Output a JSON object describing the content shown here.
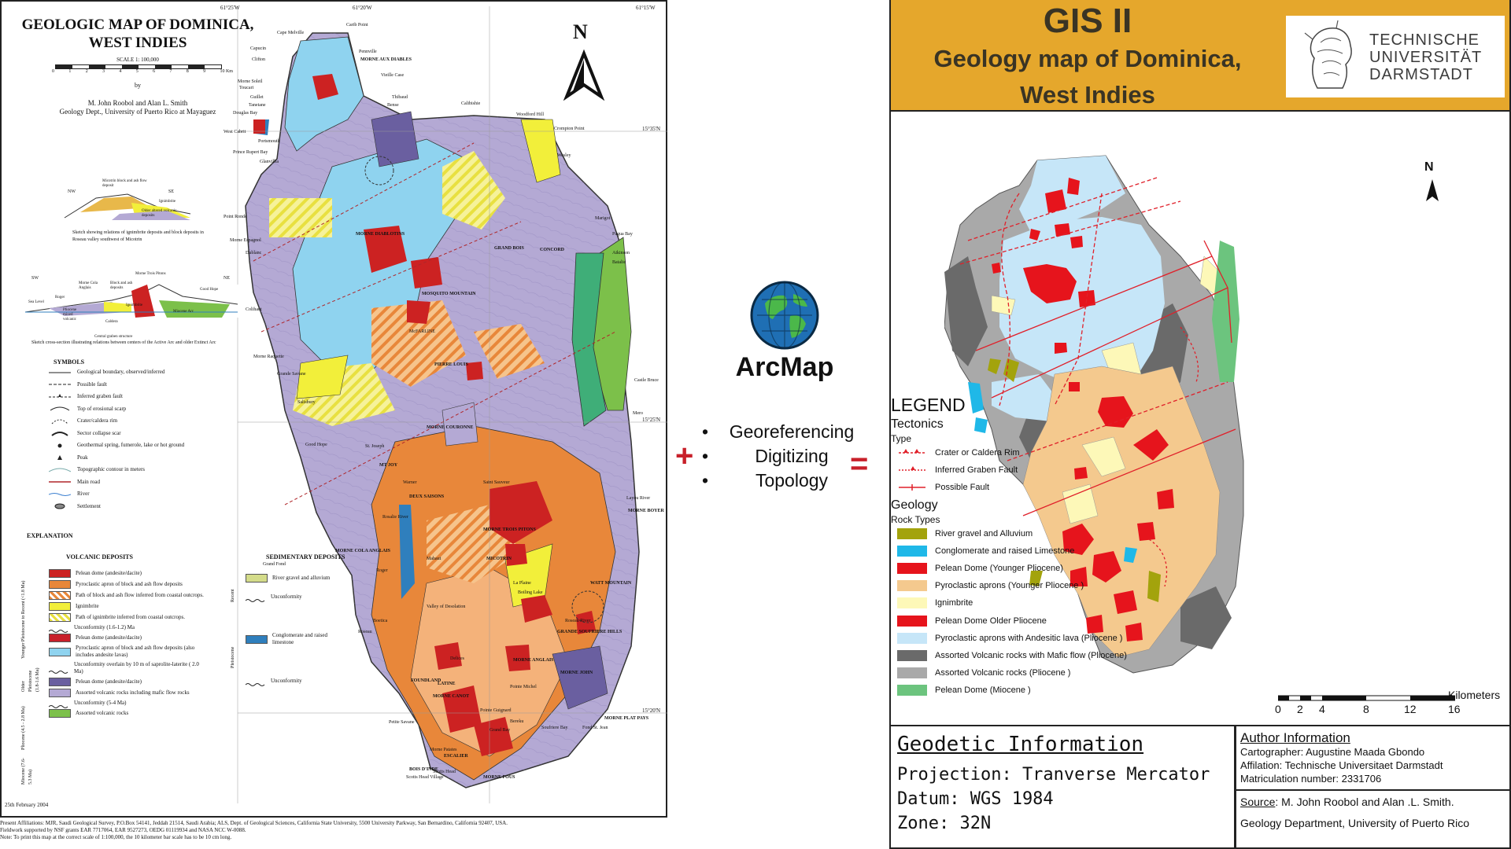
{
  "left_map": {
    "title": "GEOLOGIC MAP OF DOMINICA, WEST INDIES",
    "scale": "SCALE 1: 100,000",
    "scale_ticks": [
      "0",
      "1",
      "2",
      "3",
      "4",
      "5",
      "6",
      "7",
      "8",
      "9",
      "10 Km"
    ],
    "by": "by",
    "authors": "M. John Roobol and Alan L. Smith",
    "affiliation": "Geology Dept., University of Puerto Rico at Mayaguez",
    "north": "N",
    "coords": [
      "61°20'W",
      "61°25'W",
      "61°15'W",
      "15°35'N",
      "15°25'N",
      "15°20'N"
    ],
    "section1_caption": "Sketch showing relations of ignimbrite deposits and block deposits in Roseau valley southwest of Micotrin",
    "section2_caption": "Sketch cross-section illustrating relations between centers of the Active Arc and older Extinct Arc",
    "section1_labels": [
      "NW",
      "SE",
      "Micotrin block and ash flow deposit",
      "Ignimbrite",
      "Older altered volcanic deposits"
    ],
    "section2_labels": [
      "SW",
      "NE",
      "Morne Trois Pitons",
      "Morne Cola Anglais",
      "Block and ash deposits",
      "Good Hope",
      "Sea Level",
      "Roger",
      "Pliocene mixed volcanic",
      "Caldera",
      "Ignimbrite",
      "Miocene Arc",
      "Central graben structure"
    ],
    "symbols_heading": "SYMBOLS",
    "symbols": [
      "Geological boundary, observed/inferred",
      "Possible fault",
      "Inferred graben fault",
      "Top of erosional scarp",
      "Crater/caldera rim",
      "Sector collapse scar",
      "Geothermal spring, fumerole, lake or hot ground",
      "Peak",
      "Topographic contour in meters",
      "Main road",
      "River",
      "Settlement"
    ],
    "explanation_heading": "EXPLANATION",
    "volcanic_heading": "VOLCANIC DEPOSITS",
    "sedimentary_heading": "SEDIMENTARY DEPOSITS",
    "age_labels": [
      "Younger Pleistocene to Recent (<1.8 Ma)",
      "Older Pleistocene (1.8-1.6 Ma)",
      "Pliocene (4.5 - 2.8 Ma)",
      "Miocene (7.6-5.3 Ma)",
      "Recent",
      "Pleistocene"
    ],
    "volcanic_legend": [
      {
        "label": "Pelean dome (andesite/dacite)",
        "color": "#cc2222"
      },
      {
        "label": "Pyroclastic apron of block and ash flow deposits",
        "color": "#e8873a"
      },
      {
        "label": "Path of block and ash flow inferred from coastal outcrops.",
        "color": "#f4b27a"
      },
      {
        "label": "Ignimbrite",
        "color": "#f2ef3a"
      },
      {
        "label": "Path of ignimbrite inferred from coastal outcrops.",
        "color": "#f6f29a"
      },
      {
        "label": "Unconformity (1.6-1.2) Ma",
        "color": ""
      },
      {
        "label": "Pelean dome (andesite/dacite)",
        "color": "#c81f2a"
      },
      {
        "label": "Pyroclastic apron of block and ash flow deposits (also includes andesite lavas)",
        "color": "#8fd3ef"
      },
      {
        "label": "Unconformity overlain by 10 m of saprolite-laterite ( 2.0 Ma)",
        "color": ""
      },
      {
        "label": "Pelean dome (andesite/dacite)",
        "color": "#6a5fa0"
      },
      {
        "label": "Assorted volcanic rocks including mafic flow rocks",
        "color": "#b4a9d4"
      },
      {
        "label": "Unconformity (5-4 Ma)",
        "color": ""
      },
      {
        "label": "Assorted volcanic rocks",
        "color": "#7cc04a"
      }
    ],
    "sedimentary_legend": [
      {
        "label": "River gravel and alluvium",
        "color": "#d4dc8a"
      },
      {
        "label": "Unconformity",
        "color": ""
      },
      {
        "label": "Conglomerate and raised limestone",
        "color": "#2f7fbd"
      },
      {
        "label": "Unconformity",
        "color": ""
      }
    ],
    "places": [
      "Carib Point",
      "Cape Melville",
      "Capucin",
      "Clifton",
      "Pennville",
      "MORNE AUX DIABLES",
      "Vieille Case",
      "Morne Soleil",
      "Toucari",
      "Guillet",
      "Tanetane",
      "Douglas Bay",
      "Thibaud",
      "Bense",
      "Calibishie",
      "Woodford Hill",
      "West Cabrit",
      "Portsmouth",
      "Crompton Point",
      "Wesley",
      "Prince Rupert Bay",
      "Glanvillia",
      "MORNE DIABLOTINS",
      "Marigot",
      "Point Ronde",
      "Pagua Bay",
      "Morne Espagnol",
      "Dublanc",
      "GRAND BOIS",
      "CONCORD",
      "Atkinson",
      "Batalie",
      "MOSQUITO MOUNTAIN",
      "Colihaut",
      "McFARLINE",
      "Morne Raquette",
      "Grande Savane",
      "PIERRE LOUIS",
      "Castle Bruce",
      "Salisbury",
      "MORNE COURONNE",
      "Mero",
      "Good Hope",
      "St. Joseph",
      "MT JOY",
      "Layou River",
      "Warner",
      "Saint Sauveur",
      "DEUX SAISONS",
      "MORNE BOYER",
      "MORNE TROIS PITONS",
      "Rosalie River",
      "MORNE COLA ANGLAIS",
      "Mahaut",
      "Grand Fond",
      "MICOTRIN",
      "Roger",
      "La Plaine",
      "Boiling Lake",
      "Valley of Desolation",
      "WATT MOUNTAIN",
      "Boetica",
      "Roseau",
      "Roseau River",
      "GRANDE SOUFRIERE HILLS",
      "Delices",
      "MORNE ANGLAIS",
      "MORNE JOHN",
      "FOUNDLAND",
      "Pointe Michel",
      "LATINE",
      "MORNE CANOT",
      "MORNE PLAT PAYS",
      "Petite Savane",
      "Pointe Guignard",
      "Bereku",
      "Grand Bay",
      "Morne Patates",
      "Soufriere Bay",
      "BOIS D'INDE",
      "Scotts Head",
      "Scotts Head Village",
      "MORNE FOUS",
      "ESCALIER",
      "Fond St. Jean"
    ],
    "date": "25th February 2004",
    "footer_line1": "Present Affiliations: MJR, Saudi Geological Survey, P.O.Box 54141, Jeddah 21514, Saudi Arabia; ALS, Dept. of Geological Sciences, California State University, 5500 University Parkway, San Bernardino, California 92407, USA.",
    "footer_line2": "Fieldwork supported by NSF grants EAR 7717064, EAR 9527273, OEDG 01119934 and NASA NCC W-0088.",
    "footer_line3": "Note: To print this map at the correct scale of 1:100,000, the 10 kilometer bar scale has to be 10 cm long."
  },
  "middle": {
    "logo_label": "ArcMap",
    "steps": [
      "Georeferencing",
      "Digitizing",
      "Topology"
    ],
    "plus": "+",
    "equals": "="
  },
  "right": {
    "title": "GIS II",
    "subtitle_line1": "Geology map of Dominica,",
    "subtitle_line2": "West Indies",
    "logo_text": [
      "TECHNISCHE",
      "UNIVERSITÄT",
      "DARMSTADT"
    ],
    "north": "N",
    "legend": {
      "title": "LEGEND",
      "tectonics_heading": "Tectonics",
      "type_label": "Type",
      "tectonics": [
        {
          "label": "Crater or Caldera Rim",
          "color": "#e0202a",
          "style": "crater"
        },
        {
          "label": "Inferred Graben Fault",
          "color": "#e0202a",
          "style": "graben"
        },
        {
          "label": "Possible Fault",
          "color": "#e0202a",
          "style": "fault"
        }
      ],
      "geology_heading": "Geology",
      "rock_types_label": "Rock Types",
      "rock_types": [
        {
          "label": "River gravel and Alluvium",
          "color": "#a3a30c"
        },
        {
          "label": "Conglomerate and raised Limestone",
          "color": "#1fb8e8"
        },
        {
          "label": "Pelean Dome (Younger Pliocene)",
          "color": "#e6141c"
        },
        {
          "label": "Pyroclastic aprons (Younger Pliocene )",
          "color": "#f4c98e"
        },
        {
          "label": "Ignimbrite",
          "color": "#fdf8b8"
        },
        {
          "label": "Pelean Dome Older Pliocene",
          "color": "#e6141c"
        },
        {
          "label": "Pyroclastic aprons with Andesitic lava (Pliocene )",
          "color": "#c6e6f8"
        },
        {
          "label": "Assorted Volcanic rocks with Mafic flow (Pliocene)",
          "color": "#6a6a6a"
        },
        {
          "label": "Assorted Volcanic rocks (Pliocene )",
          "color": "#a9a9a9"
        },
        {
          "label": "Pelean Dome (Miocene )",
          "color": "#6cc47e"
        }
      ]
    },
    "scale": {
      "ticks": [
        "0",
        "2",
        "4",
        "8",
        "12",
        "16"
      ],
      "unit": "Kilometers"
    },
    "geodetic": {
      "title": "Geodetic Information",
      "projection": "Projection: Tranverse Mercator",
      "datum": "Datum: WGS 1984",
      "zone": "Zone: 32N"
    },
    "author": {
      "title": "Author Information",
      "cartographer": "Cartographer: Augustine Maada Gbondo",
      "affiliation": "Affilation: Technische Universitaet Darmstadt",
      "matriculation": "Matriculation number: 2331706"
    },
    "source": {
      "label": "Source",
      "text": ": M. John Roobol and Alan .L. Smith.",
      "line2": "Geology Department, University of Puerto Rico"
    }
  },
  "colors": {
    "title_band": "#e5a72c",
    "accent_red": "#c8202a"
  }
}
